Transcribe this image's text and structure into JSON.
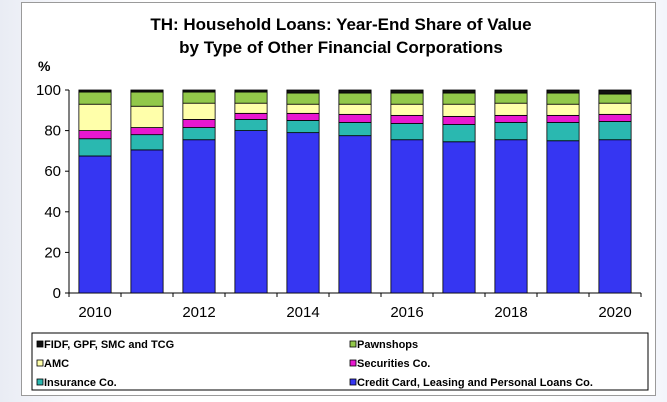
{
  "chart_data": {
    "type": "bar",
    "stacked": true,
    "title": "TH: Household Loans: Year-End Share of Value",
    "subtitle": "by Type of Other Financial Corporations",
    "ylabel": "%",
    "xlabel": "",
    "ylim": [
      0,
      100
    ],
    "yticks": [
      0,
      20,
      40,
      60,
      80,
      100
    ],
    "categories": [
      "2010",
      "2011",
      "2012",
      "2013",
      "2014",
      "2015",
      "2016",
      "2017",
      "2018",
      "2019",
      "2020"
    ],
    "xtick_labels": [
      "2010",
      "",
      "2012",
      "",
      "2014",
      "",
      "2016",
      "",
      "2018",
      "",
      "2020"
    ],
    "grid": false,
    "legend_position": "bottom",
    "series": [
      {
        "name": "Credit Card, Leasing and Personal Loans Co.",
        "color": "#3636f2",
        "values": [
          67.5,
          70.5,
          75.5,
          80,
          79,
          77.5,
          75.5,
          74.5,
          75.5,
          75,
          75.5
        ]
      },
      {
        "name": "Insurance Co.",
        "color": "#2ab8b0",
        "values": [
          8.5,
          7.5,
          6,
          5.5,
          6,
          6.5,
          8,
          8.5,
          8.5,
          9,
          9
        ]
      },
      {
        "name": "Securities Co.",
        "color": "#e818d0",
        "values": [
          4,
          3.5,
          4,
          3,
          3.5,
          4,
          4,
          4,
          3.5,
          3.5,
          3.5
        ]
      },
      {
        "name": "AMC",
        "color": "#ffffaa",
        "values": [
          13,
          10.5,
          8,
          5,
          4.5,
          5,
          5.5,
          6,
          6,
          5.5,
          5.5
        ]
      },
      {
        "name": "Pawnshops",
        "color": "#92c84a",
        "values": [
          6,
          7,
          5.5,
          5.5,
          5.5,
          5.5,
          5.5,
          5.5,
          5,
          5.5,
          4.5
        ]
      },
      {
        "name": "FIDF, GPF, SMC and TCG",
        "color": "#111111",
        "values": [
          1,
          1,
          1,
          1,
          1.5,
          1.5,
          1.5,
          1.5,
          1.5,
          1.5,
          2
        ]
      }
    ],
    "legend_order": [
      "FIDF, GPF, SMC and TCG",
      "Pawnshops",
      "AMC",
      "Securities Co.",
      "Insurance Co.",
      "Credit Card, Leasing and Personal Loans Co."
    ]
  }
}
